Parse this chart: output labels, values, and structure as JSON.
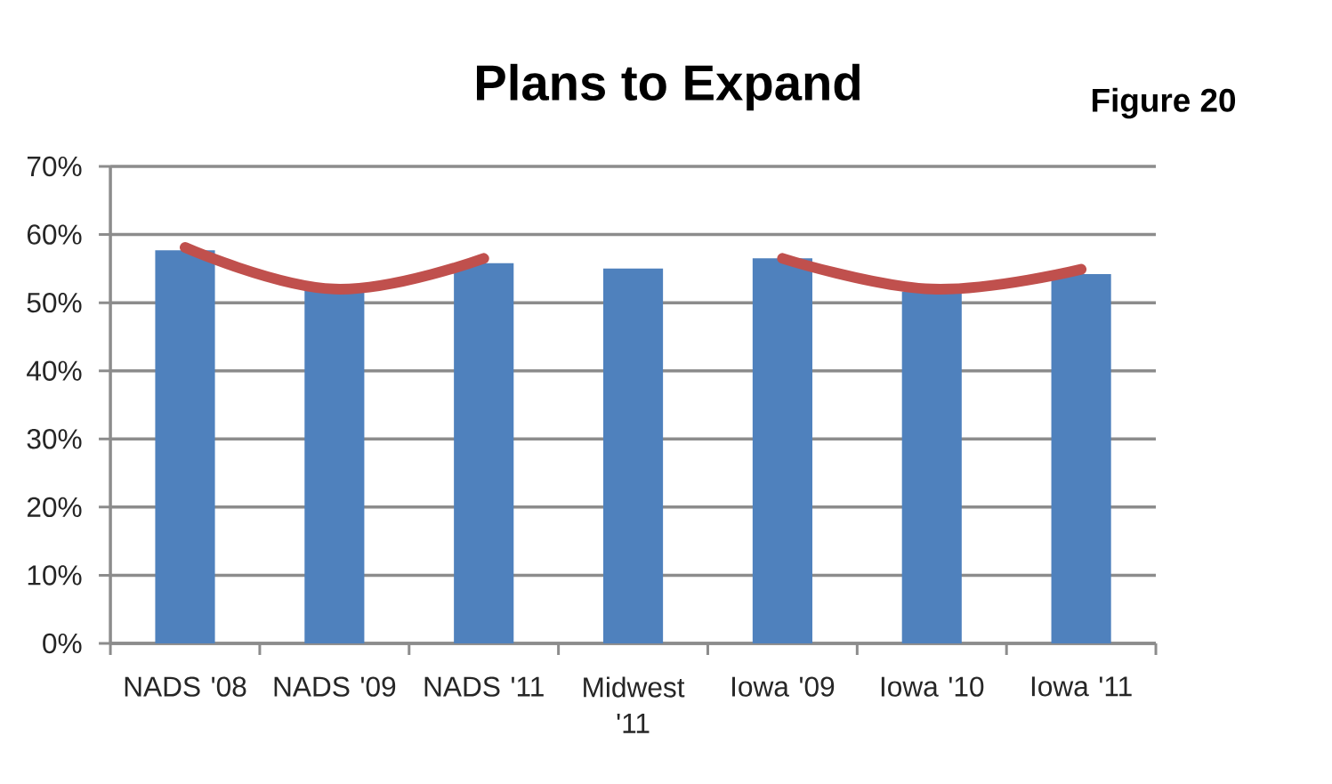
{
  "chart_data": {
    "type": "bar",
    "title": "Plans to Expand",
    "annotations": [
      "Figure 20"
    ],
    "categories": [
      "NADS '08",
      "NADS '09",
      "NADS '11",
      "Midwest '11",
      "Iowa '09",
      "Iowa '10",
      "Iowa '11"
    ],
    "series": [
      {
        "color": "#4f81bd",
        "values": [
          57.7,
          51.7,
          55.8,
          55.0,
          56.5,
          51.6,
          54.2
        ]
      },
      {
        "type": "line",
        "color": "#c0504d",
        "values": [
          58.1,
          52.0,
          56.5,
          null,
          null,
          null,
          null
        ]
      },
      {
        "type": "line",
        "color": "#c0504d",
        "values": [
          null,
          null,
          null,
          null,
          56.5,
          52.0,
          54.9
        ]
      }
    ],
    "ylim": [
      0,
      70
    ],
    "yticks": [
      {
        "value": 0,
        "label": "0%"
      },
      {
        "value": 10,
        "label": "10%"
      },
      {
        "value": 20,
        "label": "20%"
      },
      {
        "value": 30,
        "label": "30%"
      },
      {
        "value": 40,
        "label": "40%"
      },
      {
        "value": 50,
        "label": "50%"
      },
      {
        "value": 60,
        "label": "60%"
      },
      {
        "value": 70,
        "label": "70%"
      }
    ],
    "grid": "y"
  }
}
